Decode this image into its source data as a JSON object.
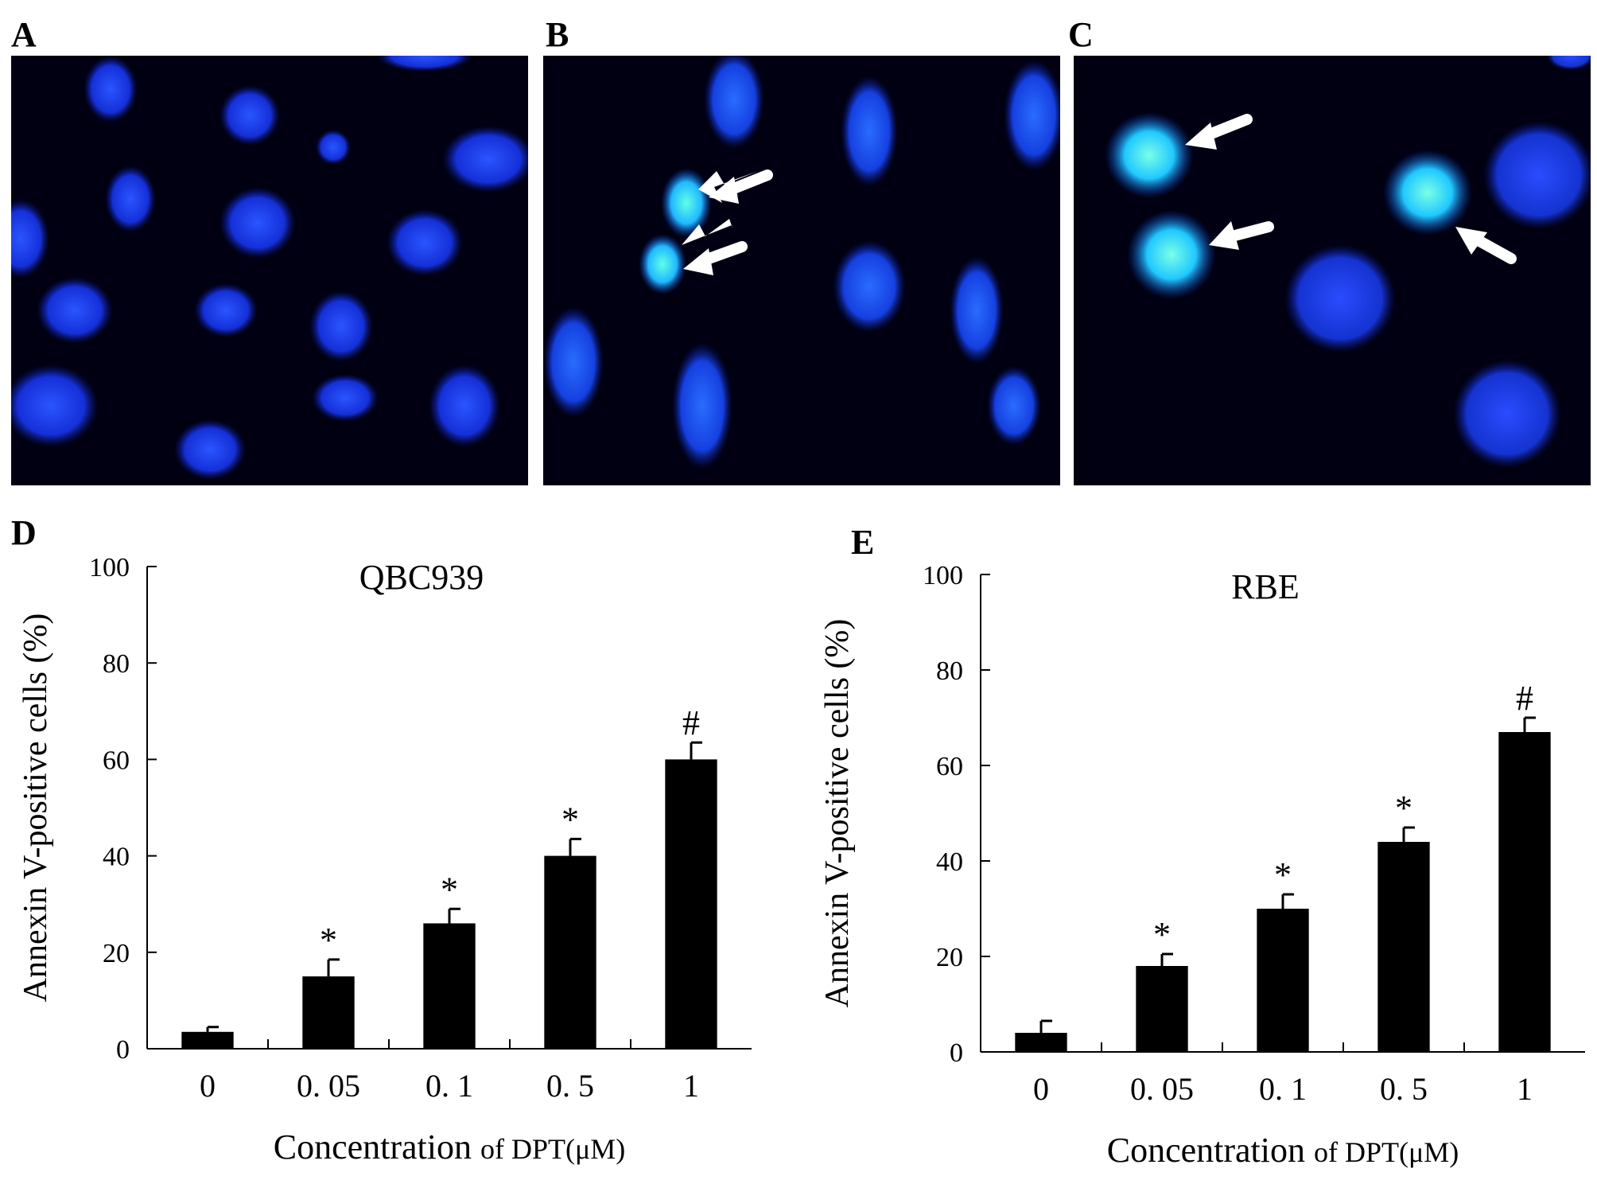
{
  "panels": {
    "A": "A",
    "B": "B",
    "C": "C",
    "D": "D",
    "E": "E"
  },
  "micrograph_colors": {
    "background": "#000012",
    "nucleus": "#1a3cff",
    "bright_nucleus": "#3fe0ff",
    "arrow": "#ffffff"
  },
  "chart_data": [
    {
      "panel": "D",
      "type": "bar",
      "title": "QBC939",
      "xlabel_main": "Concentration",
      "xlabel_suffix": "of DPT(μM)",
      "ylabel": "Annexin V-positive cells (%)",
      "categories": [
        "0",
        "0. 05",
        "0. 1",
        "0. 5",
        "1"
      ],
      "values": [
        3.5,
        15,
        26,
        40,
        60
      ],
      "errors": [
        1,
        3.5,
        3,
        3.5,
        3.5
      ],
      "markers": [
        "",
        "*",
        "*",
        "*",
        "#"
      ],
      "ylim": [
        0,
        100
      ],
      "yticks": [
        "0",
        "20",
        "40",
        "60",
        "80",
        "100"
      ],
      "bar_color": "#000000"
    },
    {
      "panel": "E",
      "type": "bar",
      "title": "RBE",
      "xlabel_main": "Concentration",
      "xlabel_suffix": "of DPT(μM)",
      "ylabel": "Annexin V-positive cells (%)",
      "categories": [
        "0",
        "0. 05",
        "0. 1",
        "0. 5",
        "1"
      ],
      "values": [
        4,
        18,
        30,
        44,
        67
      ],
      "errors": [
        2.5,
        2.5,
        3,
        3,
        3
      ],
      "markers": [
        "",
        "*",
        "*",
        "*",
        "#"
      ],
      "ylim": [
        0,
        100
      ],
      "yticks": [
        "0",
        "20",
        "40",
        "60",
        "80",
        "100"
      ],
      "bar_color": "#000000"
    }
  ]
}
